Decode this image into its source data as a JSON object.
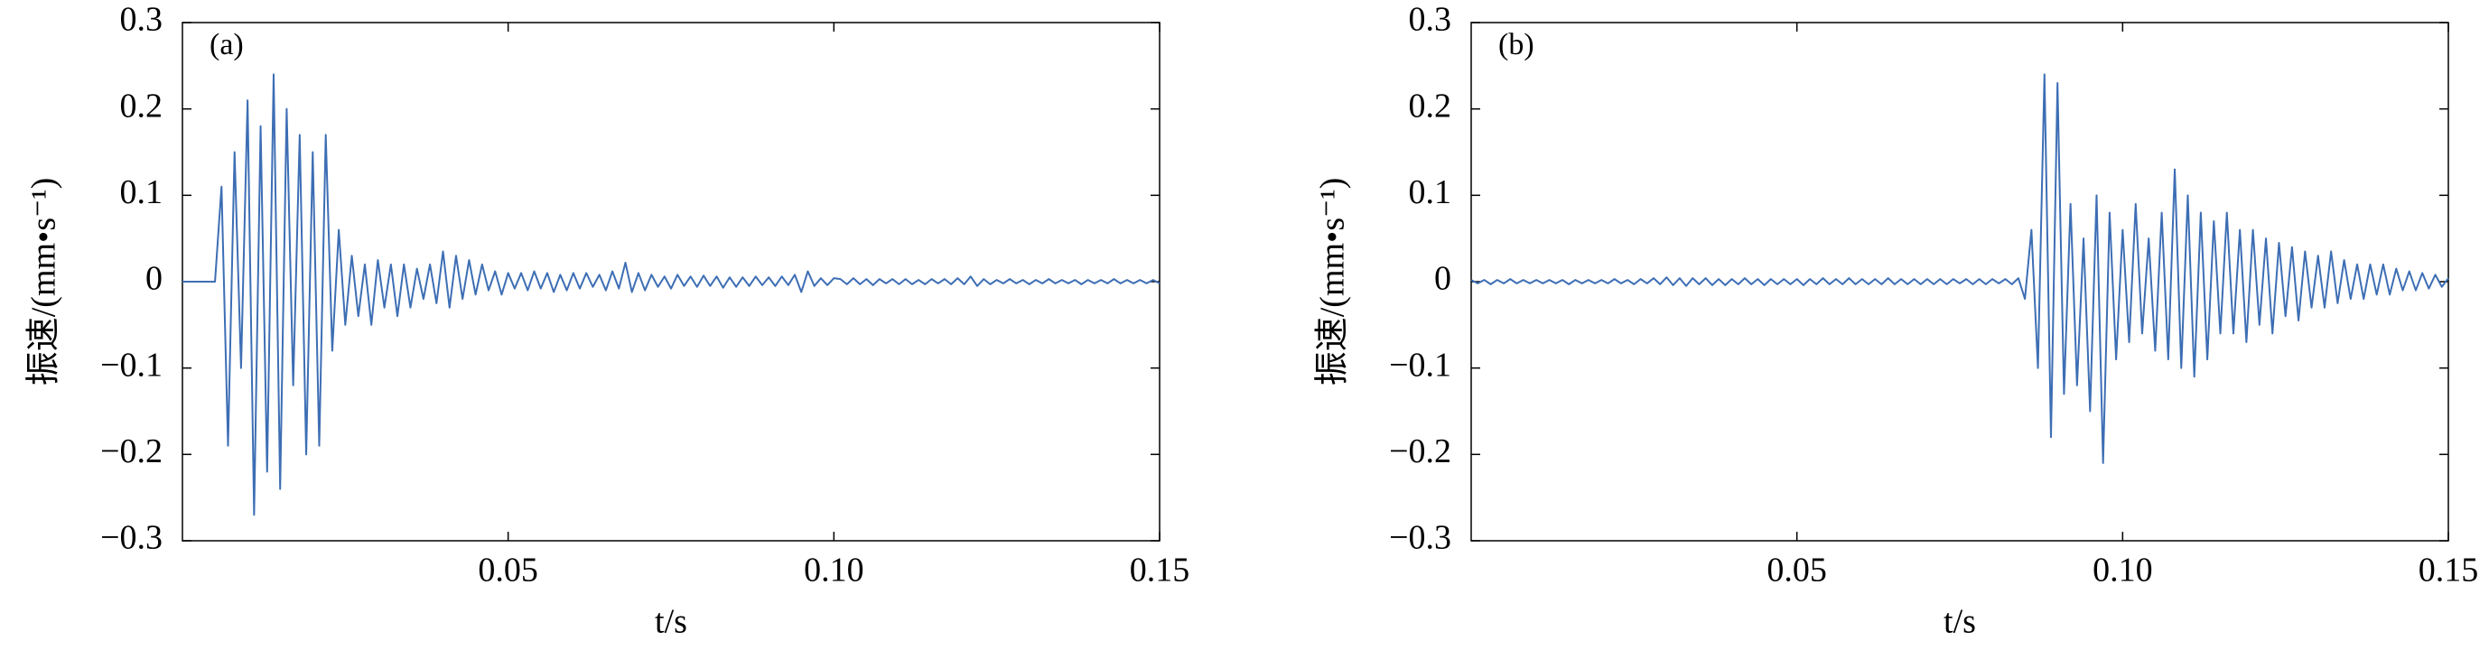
{
  "chart_data": [
    {
      "type": "line",
      "panel_label": "(a)",
      "xlabel": "t/s",
      "ylabel": "振速/(mm•s⁻¹)",
      "xlim": [
        0,
        0.15
      ],
      "ylim": [
        -0.3,
        0.3
      ],
      "xticks": [
        0.05,
        {
          "value": 0.1,
          "label": "0.10"
        },
        0.15
      ],
      "yticks": [
        {
          "value": -0.3,
          "label": "−0.3"
        },
        {
          "value": -0.2,
          "label": "−0.2"
        },
        {
          "value": -0.1,
          "label": "−0.1"
        },
        0,
        0.1,
        0.2,
        0.3
      ],
      "grid": false,
      "series": [
        {
          "color": "#3d6eb4",
          "x": [
            0,
            0.001,
            0.002,
            0.003,
            0.004,
            0.005,
            0.006,
            0.007,
            0.008,
            0.009,
            0.01,
            0.011,
            0.012,
            0.013,
            0.014,
            0.015,
            0.016,
            0.017,
            0.018,
            0.019,
            0.02,
            0.021,
            0.022,
            0.023,
            0.024,
            0.025,
            0.026,
            0.027,
            0.028,
            0.029,
            0.03,
            0.031,
            0.032,
            0.033,
            0.034,
            0.035,
            0.036,
            0.037,
            0.038,
            0.039,
            0.04,
            0.041,
            0.042,
            0.043,
            0.044,
            0.045,
            0.046,
            0.047,
            0.048,
            0.049,
            0.05,
            0.051,
            0.052,
            0.053,
            0.054,
            0.055,
            0.056,
            0.057,
            0.058,
            0.059,
            0.06,
            0.061,
            0.062,
            0.063,
            0.064,
            0.065,
            0.066,
            0.067,
            0.068,
            0.069,
            0.07,
            0.071,
            0.072,
            0.073,
            0.074,
            0.075,
            0.076,
            0.077,
            0.078,
            0.079,
            0.08,
            0.081,
            0.082,
            0.083,
            0.084,
            0.085,
            0.086,
            0.087,
            0.088,
            0.089,
            0.09,
            0.091,
            0.092,
            0.093,
            0.094,
            0.095,
            0.096,
            0.097,
            0.098,
            0.099,
            0.1,
            0.101,
            0.102,
            0.103,
            0.104,
            0.105,
            0.106,
            0.107,
            0.108,
            0.109,
            0.11,
            0.111,
            0.112,
            0.113,
            0.114,
            0.115,
            0.116,
            0.117,
            0.118,
            0.119,
            0.12,
            0.121,
            0.122,
            0.123,
            0.124,
            0.125,
            0.126,
            0.127,
            0.128,
            0.129,
            0.13,
            0.131,
            0.132,
            0.133,
            0.134,
            0.135,
            0.136,
            0.137,
            0.138,
            0.139,
            0.14,
            0.141,
            0.142,
            0.143,
            0.144,
            0.145,
            0.146,
            0.147,
            0.148,
            0.149,
            0.15
          ],
          "values": [
            0,
            0,
            0,
            0,
            0,
            0,
            0.11,
            -0.19,
            0.15,
            -0.1,
            0.21,
            -0.27,
            0.18,
            -0.22,
            0.24,
            -0.24,
            0.2,
            -0.12,
            0.17,
            -0.2,
            0.15,
            -0.19,
            0.17,
            -0.08,
            0.06,
            -0.05,
            0.03,
            -0.04,
            0.02,
            -0.05,
            0.025,
            -0.03,
            0.02,
            -0.04,
            0.02,
            -0.03,
            0.015,
            -0.02,
            0.02,
            -0.025,
            0.035,
            -0.03,
            0.03,
            -0.02,
            0.025,
            -0.015,
            0.02,
            -0.01,
            0.012,
            -0.015,
            0.01,
            -0.008,
            0.01,
            -0.01,
            0.012,
            -0.008,
            0.01,
            -0.012,
            0.008,
            -0.01,
            0.01,
            -0.008,
            0.01,
            -0.006,
            0.008,
            -0.01,
            0.012,
            -0.008,
            0.022,
            -0.012,
            0.01,
            -0.01,
            0.008,
            -0.006,
            0.006,
            -0.008,
            0.008,
            -0.005,
            0.006,
            -0.006,
            0.007,
            -0.005,
            0.006,
            -0.007,
            0.005,
            -0.006,
            0.005,
            -0.005,
            0.006,
            -0.004,
            0.005,
            -0.005,
            0.006,
            -0.004,
            0.008,
            -0.012,
            0.012,
            -0.005,
            0.004,
            -0.004,
            0.004,
            0.003,
            -0.003,
            0.004,
            -0.003,
            0.003,
            -0.004,
            0.003,
            -0.002,
            0.003,
            -0.003,
            0.003,
            -0.003,
            0.002,
            -0.003,
            0.003,
            -0.002,
            0.003,
            -0.003,
            0.004,
            -0.003,
            0.006,
            -0.005,
            0.003,
            -0.003,
            0.002,
            -0.002,
            0.003,
            -0.002,
            0.002,
            -0.003,
            0.002,
            -0.002,
            0.003,
            -0.002,
            0.002,
            -0.002,
            0.002,
            -0.003,
            0.002,
            -0.002,
            0.002,
            -0.002,
            0.003,
            -0.002,
            0.002,
            -0.002,
            0.002,
            -0.002,
            0.002,
            -0.002
          ]
        }
      ]
    },
    {
      "type": "line",
      "panel_label": "(b)",
      "xlabel": "t/s",
      "ylabel": "振速/(mm•s⁻¹)",
      "xlim": [
        0,
        0.15
      ],
      "ylim": [
        -0.3,
        0.3
      ],
      "xticks": [
        0.05,
        {
          "value": 0.1,
          "label": "0.10"
        },
        0.15
      ],
      "yticks": [
        {
          "value": -0.3,
          "label": "−0.3"
        },
        {
          "value": -0.2,
          "label": "−0.2"
        },
        {
          "value": -0.1,
          "label": "−0.1"
        },
        0,
        0.1,
        0.2,
        0.3
      ],
      "grid": false,
      "series": [
        {
          "color": "#3d6eb4",
          "x": [
            0,
            0.001,
            0.002,
            0.003,
            0.004,
            0.005,
            0.006,
            0.007,
            0.008,
            0.009,
            0.01,
            0.011,
            0.012,
            0.013,
            0.014,
            0.015,
            0.016,
            0.017,
            0.018,
            0.019,
            0.02,
            0.021,
            0.022,
            0.023,
            0.024,
            0.025,
            0.026,
            0.027,
            0.028,
            0.029,
            0.03,
            0.031,
            0.032,
            0.033,
            0.034,
            0.035,
            0.036,
            0.037,
            0.038,
            0.039,
            0.04,
            0.041,
            0.042,
            0.043,
            0.044,
            0.045,
            0.046,
            0.047,
            0.048,
            0.049,
            0.05,
            0.051,
            0.052,
            0.053,
            0.054,
            0.055,
            0.056,
            0.057,
            0.058,
            0.059,
            0.06,
            0.061,
            0.062,
            0.063,
            0.064,
            0.065,
            0.066,
            0.067,
            0.068,
            0.069,
            0.07,
            0.071,
            0.072,
            0.073,
            0.074,
            0.075,
            0.076,
            0.077,
            0.078,
            0.079,
            0.08,
            0.081,
            0.082,
            0.083,
            0.084,
            0.085,
            0.086,
            0.087,
            0.088,
            0.089,
            0.09,
            0.091,
            0.092,
            0.093,
            0.094,
            0.095,
            0.096,
            0.097,
            0.098,
            0.099,
            0.1,
            0.101,
            0.102,
            0.103,
            0.104,
            0.105,
            0.106,
            0.107,
            0.108,
            0.109,
            0.11,
            0.111,
            0.112,
            0.113,
            0.114,
            0.115,
            0.116,
            0.117,
            0.118,
            0.119,
            0.12,
            0.121,
            0.122,
            0.123,
            0.124,
            0.125,
            0.126,
            0.127,
            0.128,
            0.129,
            0.13,
            0.131,
            0.132,
            0.133,
            0.134,
            0.135,
            0.136,
            0.137,
            0.138,
            0.139,
            0.14,
            0.141,
            0.142,
            0.143,
            0.144,
            0.145,
            0.146,
            0.147,
            0.148,
            0.149,
            0.15
          ],
          "values": [
            0.002,
            -0.002,
            0.002,
            -0.003,
            0.002,
            -0.002,
            0.003,
            -0.002,
            0.002,
            -0.002,
            0.002,
            -0.002,
            0.002,
            -0.002,
            0.002,
            -0.003,
            0.002,
            -0.002,
            0.002,
            -0.002,
            0.002,
            -0.002,
            0.003,
            -0.002,
            0.002,
            -0.003,
            0.003,
            -0.002,
            0.004,
            -0.003,
            0.005,
            -0.004,
            0.004,
            -0.005,
            0.004,
            -0.003,
            0.004,
            -0.004,
            0.003,
            -0.004,
            0.003,
            -0.003,
            0.004,
            -0.003,
            0.003,
            -0.004,
            0.003,
            -0.003,
            0.003,
            -0.003,
            0.003,
            -0.004,
            0.003,
            -0.003,
            0.004,
            -0.003,
            0.003,
            -0.003,
            0.004,
            -0.003,
            0.003,
            -0.003,
            0.003,
            -0.003,
            0.004,
            -0.003,
            0.003,
            -0.003,
            0.003,
            -0.003,
            0.003,
            -0.003,
            0.003,
            -0.003,
            0.003,
            -0.002,
            0.003,
            -0.003,
            0.003,
            -0.003,
            0.003,
            -0.002,
            0.003,
            -0.003,
            0.004,
            -0.02,
            0.06,
            -0.1,
            0.24,
            -0.18,
            0.23,
            -0.13,
            0.09,
            -0.12,
            0.05,
            -0.15,
            0.1,
            -0.21,
            0.08,
            -0.09,
            0.06,
            -0.07,
            0.09,
            -0.06,
            0.05,
            -0.08,
            0.08,
            -0.09,
            0.13,
            -0.1,
            0.1,
            -0.11,
            0.08,
            -0.09,
            0.07,
            -0.06,
            0.08,
            -0.06,
            0.06,
            -0.07,
            0.06,
            -0.05,
            0.05,
            -0.06,
            0.045,
            -0.04,
            0.04,
            -0.045,
            0.035,
            -0.03,
            0.03,
            -0.03,
            0.035,
            -0.025,
            0.025,
            -0.02,
            0.02,
            -0.02,
            0.02,
            -0.015,
            0.02,
            -0.015,
            0.015,
            -0.01,
            0.012,
            -0.01,
            0.01,
            -0.008,
            0.008,
            -0.006,
            0.004
          ]
        }
      ]
    }
  ]
}
